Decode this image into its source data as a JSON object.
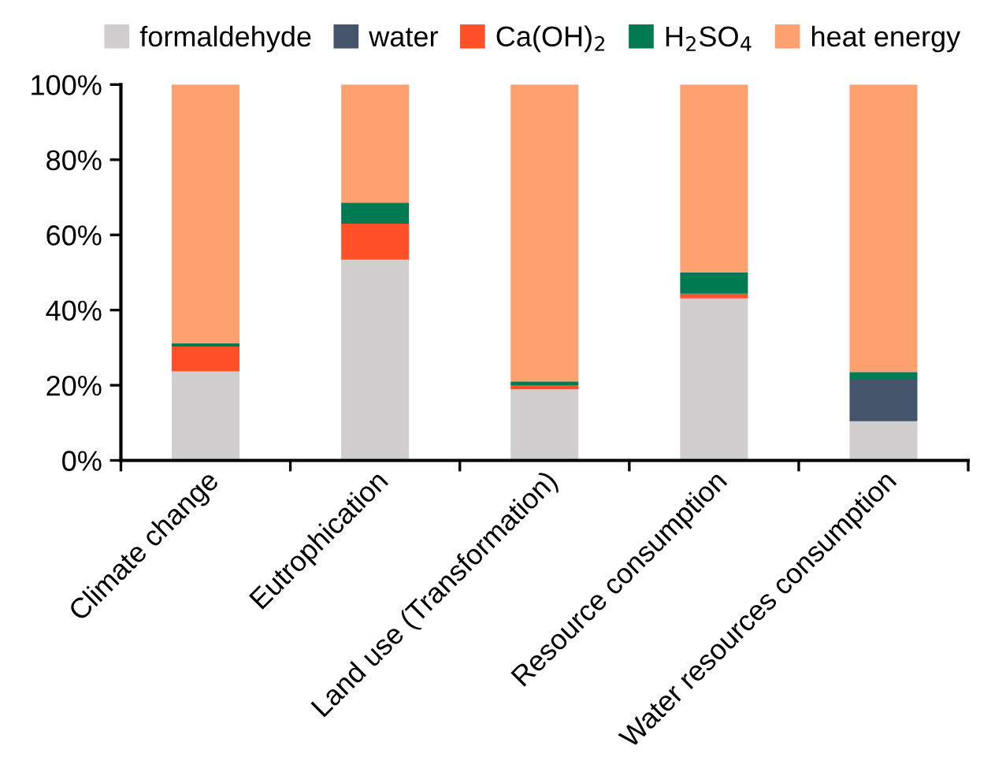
{
  "chart_data": {
    "type": "bar",
    "stacked": true,
    "categories": [
      "Climate change",
      "Eutrophication",
      "Land use (Transformation)",
      "Resource consumption",
      "Water resources consumption"
    ],
    "series": [
      {
        "name": "formaldehyde",
        "color": "#d0cece",
        "values": [
          23.7,
          53.4,
          18.9,
          43.1,
          10.4
        ]
      },
      {
        "name": "water",
        "color": "#44546a",
        "values": [
          0,
          0,
          0,
          0,
          11.3
        ]
      },
      {
        "name": "Ca(OH)$_{2}$",
        "color": "#ff5028",
        "values": [
          6.6,
          9.6,
          1.1,
          1.3,
          0
        ]
      },
      {
        "name": "H$_{2}$SO$_{4}$",
        "color": "#007a50",
        "values": [
          0.8,
          5.6,
          1.0,
          5.6,
          1.8
        ]
      },
      {
        "name": "heat energy",
        "color": "#ffa070",
        "values": [
          68.9,
          31.4,
          79.0,
          50.0,
          76.5
        ]
      }
    ],
    "ylim": [
      0,
      100
    ],
    "yticks": [
      {
        "value": 0,
        "label": "0%"
      },
      {
        "value": 20,
        "label": "20%"
      },
      {
        "value": 40,
        "label": "40%"
      },
      {
        "value": 60,
        "label": "60%"
      },
      {
        "value": 80,
        "label": "80%"
      },
      {
        "value": 100,
        "label": "100%"
      }
    ],
    "grid": false,
    "legend": "top"
  }
}
